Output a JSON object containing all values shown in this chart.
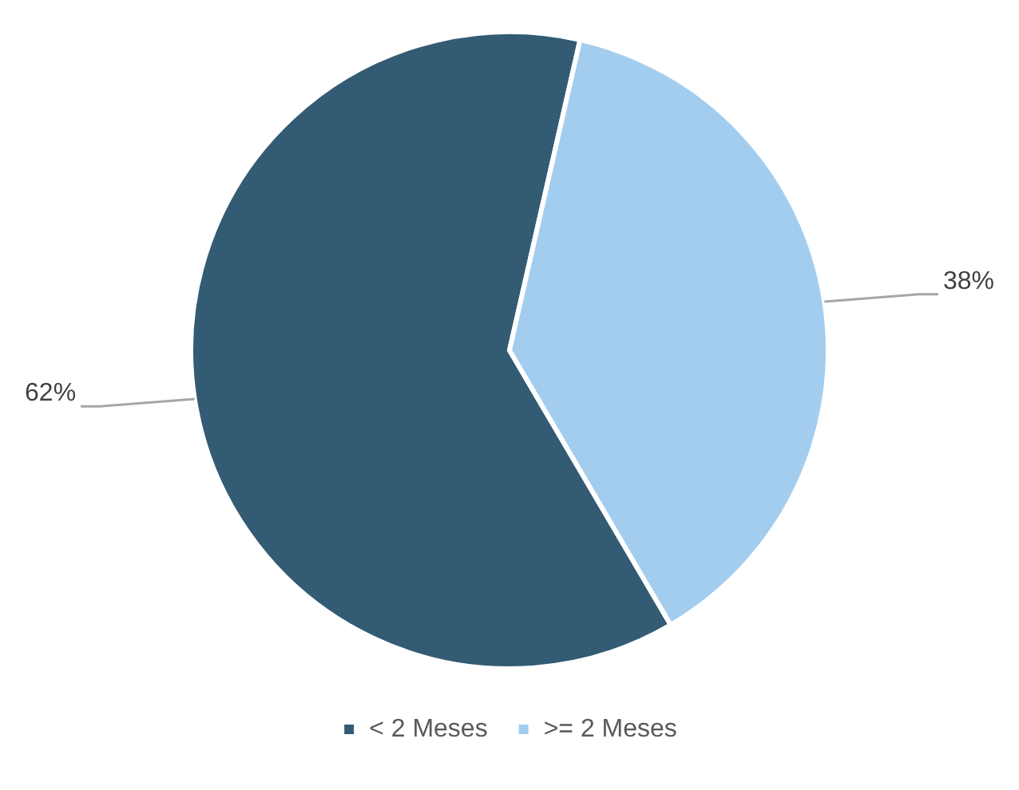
{
  "chart_data": {
    "type": "pie",
    "categories": [
      "< 2 Meses",
      ">= 2 Meses"
    ],
    "values": [
      62,
      38
    ],
    "colors": [
      "#335b74",
      "#a3cdef"
    ],
    "value_labels": [
      "62%",
      "38%"
    ],
    "legend": "bottom"
  }
}
